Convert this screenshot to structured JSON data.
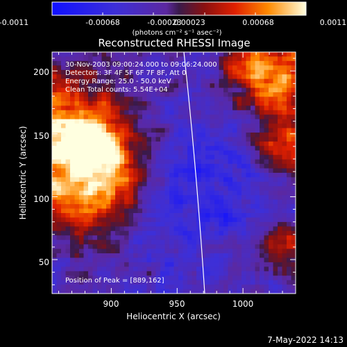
{
  "chart_data": {
    "type": "heatmap",
    "title": "Reconstructed RHESSI Image",
    "xlabel": "Heliocentric X (arcsec)",
    "ylabel": "Heliocentric Y (arcsec)",
    "xlim": [
      855,
      1040
    ],
    "ylim": [
      23,
      215
    ],
    "x_ticks": [
      "900",
      "950",
      "1000"
    ],
    "y_ticks": [
      "50",
      "100",
      "150",
      "200"
    ],
    "colorbar": {
      "range": [
        -0.0011,
        0.0011
      ],
      "tick_labels": [
        "-0.0011",
        "-0.00068",
        "-0.00023",
        "0.00023",
        "0.00068",
        "0.0011"
      ],
      "unit_label": "(photons cm⁻² s⁻¹ asec⁻²)"
    },
    "annotations": [
      "30-Nov-2003 09:00:24.000 to 09:06:24.000",
      "Detectors: 3F 4F 5F 6F 7F 8F, Att 0",
      "Energy Range: 25.0 - 50.0 keV",
      "Clean     Total counts: 5.54E+04"
    ],
    "peak_label": "Position of Peak = [889,162]",
    "grid": false,
    "limb_visible": true
  },
  "footer": {
    "timestamp": "7-May-2022 14:13"
  }
}
